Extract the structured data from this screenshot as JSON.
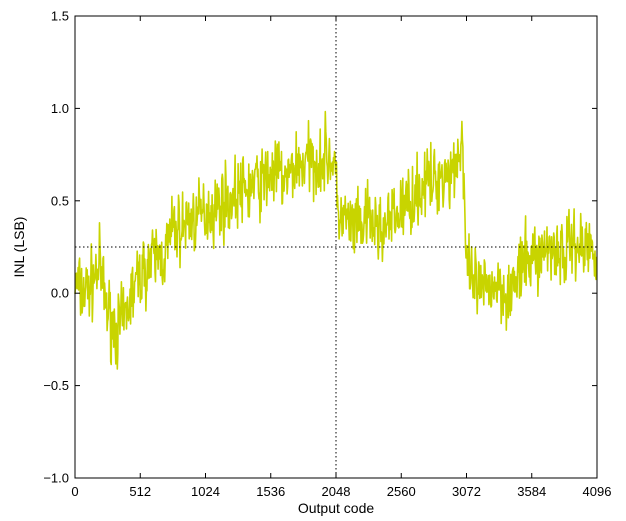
{
  "chart_data": {
    "type": "line",
    "title": "",
    "xlabel": "Output code",
    "ylabel": "INL (LSB)",
    "xlim": [
      0,
      4096
    ],
    "ylim": [
      -1.0,
      1.5
    ],
    "xticks": [
      0,
      512,
      1024,
      1536,
      2048,
      2560,
      3072,
      3584,
      4096
    ],
    "xtick_labels": [
      "0",
      "512",
      "1024",
      "1536",
      "2048",
      "2560",
      "3072",
      "3584",
      "4096"
    ],
    "yticks": [
      -1.0,
      -0.5,
      0.0,
      0.5,
      1.0,
      1.5
    ],
    "ytick_labels": [
      "−1.0",
      "−0.5",
      "0.0",
      "0.5",
      "1.0",
      "1.5"
    ],
    "grid": false,
    "colors": {
      "series": "#c8d400",
      "reference": "#000000",
      "axis": "#000000"
    },
    "reference_lines": [
      {
        "orientation": "horizontal",
        "value": 0.25,
        "style": "dotted"
      },
      {
        "orientation": "vertical",
        "value": 2048,
        "style": "dotted"
      }
    ],
    "series": [
      {
        "x": [
          0,
          64,
          128,
          192,
          256,
          320,
          384,
          448,
          512,
          576,
          640,
          704,
          768,
          832,
          896,
          960,
          1024,
          1088,
          1152,
          1216,
          1280,
          1344,
          1408,
          1472,
          1536,
          1600,
          1664,
          1728,
          1792,
          1856,
          1920,
          1984,
          2040,
          2056,
          2112,
          2176,
          2240,
          2304,
          2368,
          2432,
          2496,
          2560,
          2624,
          2688,
          2752,
          2816,
          2880,
          2944,
          3008,
          3040,
          3072,
          3136,
          3200,
          3264,
          3328,
          3392,
          3456,
          3520,
          3584,
          3648,
          3712,
          3776,
          3840,
          3904,
          3968,
          4032,
          4096
        ],
        "y": [
          0.05,
          0.0,
          0.05,
          0.15,
          -0.1,
          -0.2,
          -0.15,
          0.0,
          0.1,
          0.15,
          0.2,
          0.2,
          0.35,
          0.35,
          0.4,
          0.4,
          0.45,
          0.45,
          0.5,
          0.5,
          0.55,
          0.55,
          0.6,
          0.6,
          0.65,
          0.65,
          0.6,
          0.7,
          0.7,
          0.72,
          0.72,
          0.75,
          0.7,
          0.45,
          0.4,
          0.35,
          0.35,
          0.4,
          0.35,
          0.35,
          0.4,
          0.45,
          0.5,
          0.55,
          0.6,
          0.6,
          0.65,
          0.65,
          0.75,
          0.85,
          0.1,
          0.05,
          0.0,
          0.05,
          0.05,
          0.0,
          0.05,
          0.15,
          0.2,
          0.2,
          0.25,
          0.25,
          0.2,
          0.3,
          0.25,
          0.25,
          0.25
        ],
        "noise_amplitude": 0.2
      }
    ]
  }
}
